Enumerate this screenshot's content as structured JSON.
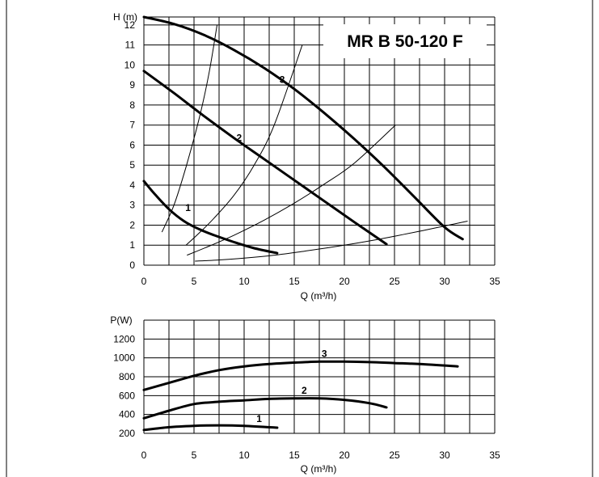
{
  "title": "MR B 50-120 F",
  "chart_data": [
    {
      "type": "line",
      "ylabel": "H (m)",
      "xlabel": "Q (m³/h)",
      "xlim": [
        0,
        35
      ],
      "ylim": [
        0,
        12.4
      ],
      "xticks": [
        0,
        5,
        10,
        15,
        20,
        25,
        30,
        35
      ],
      "yticks": [
        0,
        1,
        2,
        3,
        4,
        5,
        6,
        7,
        8,
        9,
        10,
        11,
        12
      ],
      "grid": true,
      "series": [
        {
          "name": "1",
          "x": [
            0,
            1,
            2.5,
            4,
            5.5,
            7,
            9,
            11,
            13.3
          ],
          "y": [
            4.2,
            3.6,
            2.8,
            2.2,
            1.8,
            1.5,
            1.15,
            0.85,
            0.6
          ]
        },
        {
          "name": "2",
          "x": [
            0,
            3,
            6,
            9,
            12,
            15,
            18,
            21,
            24.2
          ],
          "y": [
            9.7,
            8.6,
            7.45,
            6.35,
            5.3,
            4.25,
            3.2,
            2.15,
            1.05
          ]
        },
        {
          "name": "3",
          "x": [
            0,
            3,
            6,
            9,
            12,
            15,
            18,
            21,
            24,
            27,
            30,
            31.8
          ],
          "y": [
            12.4,
            12.05,
            11.5,
            10.75,
            9.85,
            8.8,
            7.6,
            6.3,
            4.9,
            3.4,
            1.9,
            1.3
          ]
        }
      ],
      "system_curves": [
        {
          "x": [
            5.1,
            7.2,
            10,
            13,
            16,
            20,
            24,
            28,
            32.3
          ],
          "y": [
            0.2,
            0.25,
            0.35,
            0.5,
            0.7,
            1.0,
            1.35,
            1.75,
            2.2
          ]
        },
        {
          "x": [
            4.3,
            6.5,
            9,
            12,
            15,
            18,
            21,
            25.1
          ],
          "y": [
            0.5,
            0.95,
            1.5,
            2.25,
            3.1,
            4.05,
            5.1,
            7.0
          ]
        },
        {
          "x": [
            4.2,
            5.5,
            7,
            9,
            11,
            13,
            15.8
          ],
          "y": [
            1.0,
            1.6,
            2.35,
            3.5,
            5.0,
            7.0,
            11.0
          ]
        },
        {
          "x": [
            1.8,
            3,
            4.2,
            5.5,
            6.5,
            7.3
          ],
          "y": [
            1.65,
            3.0,
            4.9,
            7.3,
            9.6,
            12.0
          ]
        }
      ]
    },
    {
      "type": "line",
      "ylabel": "P(W)",
      "xlabel": "Q (m³/h)",
      "xlim": [
        0,
        35
      ],
      "ylim": [
        200,
        1400
      ],
      "xticks": [
        0,
        5,
        10,
        15,
        20,
        25,
        30,
        35
      ],
      "yticks": [
        200,
        400,
        600,
        800,
        1000,
        1200
      ],
      "grid": true,
      "series": [
        {
          "name": "1",
          "x": [
            0,
            2.5,
            5,
            7.5,
            10,
            13.3
          ],
          "y": [
            235,
            265,
            280,
            285,
            280,
            260
          ]
        },
        {
          "name": "2",
          "x": [
            0,
            2.5,
            5,
            7.5,
            10,
            12.5,
            15,
            17.5,
            20,
            22.5,
            24.2
          ],
          "y": [
            360,
            440,
            510,
            535,
            550,
            565,
            570,
            570,
            555,
            520,
            475
          ]
        },
        {
          "name": "3",
          "x": [
            0,
            2.5,
            5,
            7.5,
            10,
            12.5,
            15,
            17.5,
            20,
            22.5,
            25,
            27.5,
            31.3
          ],
          "y": [
            660,
            735,
            810,
            870,
            910,
            935,
            950,
            960,
            960,
            955,
            945,
            935,
            910
          ]
        }
      ]
    }
  ]
}
